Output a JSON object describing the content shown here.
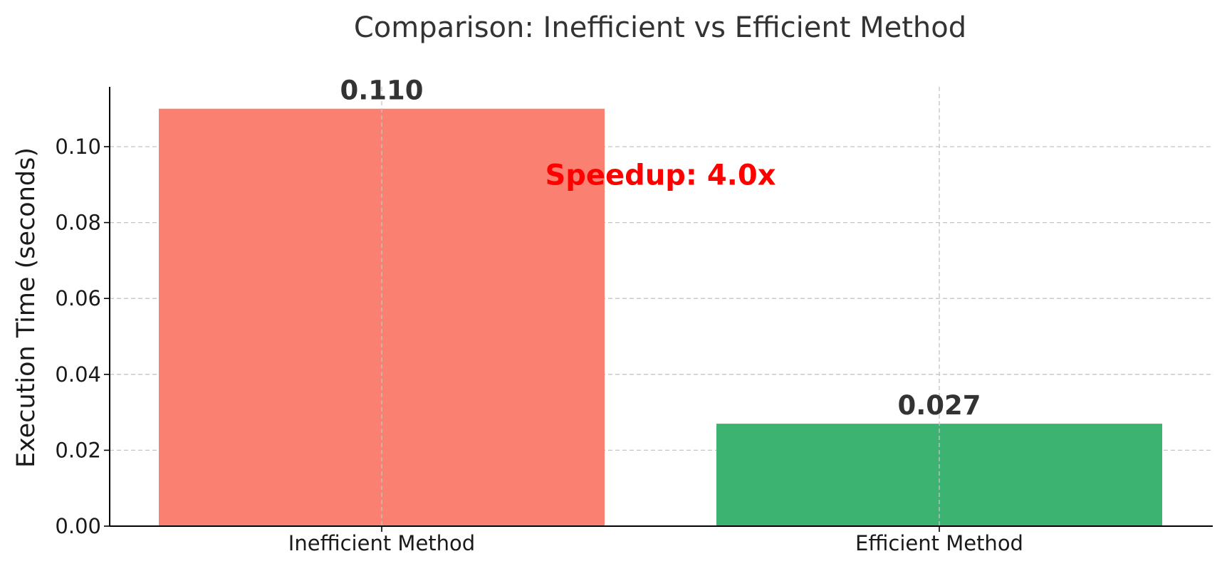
{
  "chart_data": {
    "type": "bar",
    "title": "Comparison: Inefficient vs Efficient Method",
    "xlabel": "",
    "ylabel": "Execution Time (seconds)",
    "categories": [
      "Inefficient Method",
      "Efficient Method"
    ],
    "values": [
      0.11,
      0.027
    ],
    "value_labels": [
      "0.110",
      "0.027"
    ],
    "colors": [
      "#fa8072",
      "#3cb371"
    ],
    "ylim": [
      0,
      0.115
    ],
    "yticks": [
      0.0,
      0.02,
      0.04,
      0.06,
      0.08,
      0.1
    ],
    "ytick_labels": [
      "0.00",
      "0.02",
      "0.04",
      "0.06",
      "0.08",
      "0.10"
    ],
    "grid": true,
    "annotation": {
      "text": "Speedup: 4.0x",
      "color": "#ff0000",
      "x_category": 0.5,
      "y": 0.09
    }
  }
}
